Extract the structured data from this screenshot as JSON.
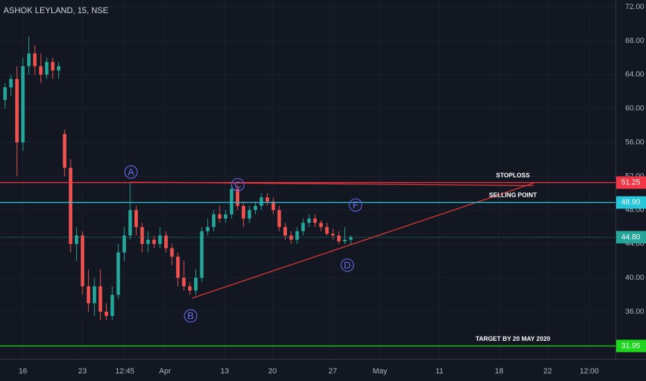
{
  "chart_data": {
    "type": "candlestick",
    "title": "ASHOK LEYLAND, 15, NSE",
    "x": [
      -1.5,
      -1,
      -0.5,
      0,
      0.5,
      1,
      1.5,
      2,
      2.5,
      3,
      3.5,
      4,
      4.5,
      5,
      5.5,
      6,
      6.5,
      7,
      7.5,
      8,
      8.5,
      9,
      9.5,
      10,
      10.5,
      11,
      11.5,
      12,
      12.5,
      13,
      13.5,
      14,
      14.5,
      15,
      15.5,
      16,
      16.5,
      17,
      17.5,
      18,
      18.5,
      19,
      19.5,
      20,
      20.5,
      21,
      21.5,
      22,
      22.5,
      23,
      23.5,
      24,
      24.5,
      25,
      25.5,
      26,
      26.5,
      27,
      27.5
    ],
    "open": [
      61,
      62.5,
      63.5,
      56,
      65,
      66.5,
      65,
      64,
      65.5,
      64.5,
      57,
      53,
      44,
      45,
      39,
      37,
      39,
      36,
      35.5,
      38,
      43,
      45,
      48,
      46,
      44,
      44.5,
      44,
      45,
      43.5,
      42.5,
      40,
      39,
      38.5,
      40,
      45.5,
      46,
      47.5,
      47,
      47.5,
      50.5,
      48.5,
      47,
      48,
      48.5,
      49.5,
      49,
      48,
      46,
      45,
      44.5,
      45.5,
      46.5,
      47,
      46.5,
      46,
      45.2,
      45,
      44.3,
      44.5
    ],
    "high": [
      63,
      64,
      65,
      66,
      68.5,
      67.5,
      66.5,
      66,
      66,
      65.5,
      57.5,
      54,
      46,
      45.5,
      41,
      40,
      41,
      37,
      39,
      44,
      46,
      51.25,
      48.5,
      46.5,
      45.5,
      45,
      46,
      45.5,
      44,
      43,
      42,
      39.5,
      41,
      46,
      47,
      48,
      48.5,
      48,
      51.25,
      51,
      49,
      48.5,
      49,
      50,
      50,
      49.5,
      48.5,
      46.5,
      45.5,
      46,
      47,
      47.5,
      47.5,
      46.8,
      46.5,
      45.8,
      45.5,
      46,
      45
    ],
    "low": [
      60,
      61.5,
      52,
      55,
      64,
      64,
      63,
      63.5,
      63.5,
      63.5,
      52,
      43,
      42,
      38,
      36,
      35.5,
      35,
      35,
      35,
      37.5,
      42,
      44.5,
      45,
      43,
      43,
      43.5,
      43.5,
      43,
      41.5,
      39,
      38.5,
      38,
      38,
      39.5,
      45,
      45.5,
      46.5,
      46.5,
      47,
      48,
      46,
      46.5,
      47.5,
      48,
      48.5,
      47.5,
      45.5,
      44.5,
      44,
      44,
      45,
      46,
      46,
      45.5,
      45,
      44.5,
      44,
      44,
      44
    ],
    "close": [
      62.5,
      63.5,
      56,
      65,
      66.5,
      65,
      64,
      65.5,
      64.5,
      65,
      53,
      44,
      45,
      39,
      37,
      39,
      36,
      35.5,
      38,
      43,
      45,
      48,
      46,
      44,
      44.5,
      44,
      45,
      43.5,
      42.5,
      40,
      39,
      38.5,
      40,
      45.5,
      46,
      47.5,
      47,
      47.5,
      50.5,
      48.5,
      47,
      48,
      48.5,
      49.5,
      49,
      48,
      46,
      45,
      44.5,
      45.5,
      46.5,
      47,
      46.5,
      46,
      45.2,
      45,
      44.3,
      44.5,
      44.8
    ],
    "up_color": "#26a69a",
    "down_color": "#ef5350",
    "xlim": [
      -1.92,
      49.7
    ],
    "xticks": [
      {
        "value": 0,
        "label": "16"
      },
      {
        "value": 5,
        "label": "23"
      },
      {
        "value": 8.55,
        "label": "12:45"
      },
      {
        "value": 11.92,
        "label": "Apr"
      },
      {
        "value": 16.92,
        "label": "13"
      },
      {
        "value": 20.93,
        "label": "20"
      },
      {
        "value": 25.99,
        "label": "27"
      },
      {
        "value": 29.94,
        "label": "May"
      },
      {
        "value": 34.94,
        "label": "11"
      },
      {
        "value": 39.94,
        "label": "18"
      },
      {
        "value": 44.01,
        "label": "22"
      },
      {
        "value": 47.5,
        "label": "12:00"
      }
    ],
    "ylim": [
      30.43,
      72.82
    ],
    "yticks": [
      {
        "value": 36,
        "label": "36.00"
      },
      {
        "value": 40,
        "label": "40.00"
      },
      {
        "value": 44,
        "label": "44.00"
      },
      {
        "value": 48,
        "label": "48.00"
      },
      {
        "value": 52,
        "label": "52.00"
      },
      {
        "value": 56,
        "label": "56.00"
      },
      {
        "value": 60,
        "label": "60.00"
      },
      {
        "value": 64,
        "label": "64.00"
      },
      {
        "value": 68,
        "label": "68.00"
      },
      {
        "value": 72,
        "label": "72.00"
      }
    ],
    "grid": true,
    "levels": [
      {
        "name": "STOPLOSS",
        "value": 51.25,
        "color": "#f23645"
      },
      {
        "name": "SELLING POINT",
        "value": 48.9,
        "value_label": "48.90",
        "color": "#26c6da"
      },
      {
        "value": 44.8,
        "value_label": "44.80",
        "color": "#26a69a",
        "dotted": true
      },
      {
        "name": "TARGET BY 20 MAY 2020",
        "value": 31.95,
        "color": "#1ed61e"
      }
    ],
    "trendlines": [
      {
        "x": [
          14.19,
          42.85
        ],
        "y": [
          37.6,
          51.2
        ],
        "color": "#e53935"
      },
      {
        "x": [
          9.01,
          42.85
        ],
        "y": [
          51.3,
          50.9
        ],
        "color": "#e53935"
      }
    ],
    "annotations": [
      {
        "label": "A",
        "x": 9.07,
        "y": 52.5
      },
      {
        "label": "B",
        "x": 14.07,
        "y": 35.5
      },
      {
        "label": "C",
        "x": 18.03,
        "y": 51.0
      },
      {
        "label": "D",
        "x": 27.21,
        "y": 41.5
      },
      {
        "label": "F",
        "x": 27.9,
        "y": 48.6
      }
    ]
  }
}
